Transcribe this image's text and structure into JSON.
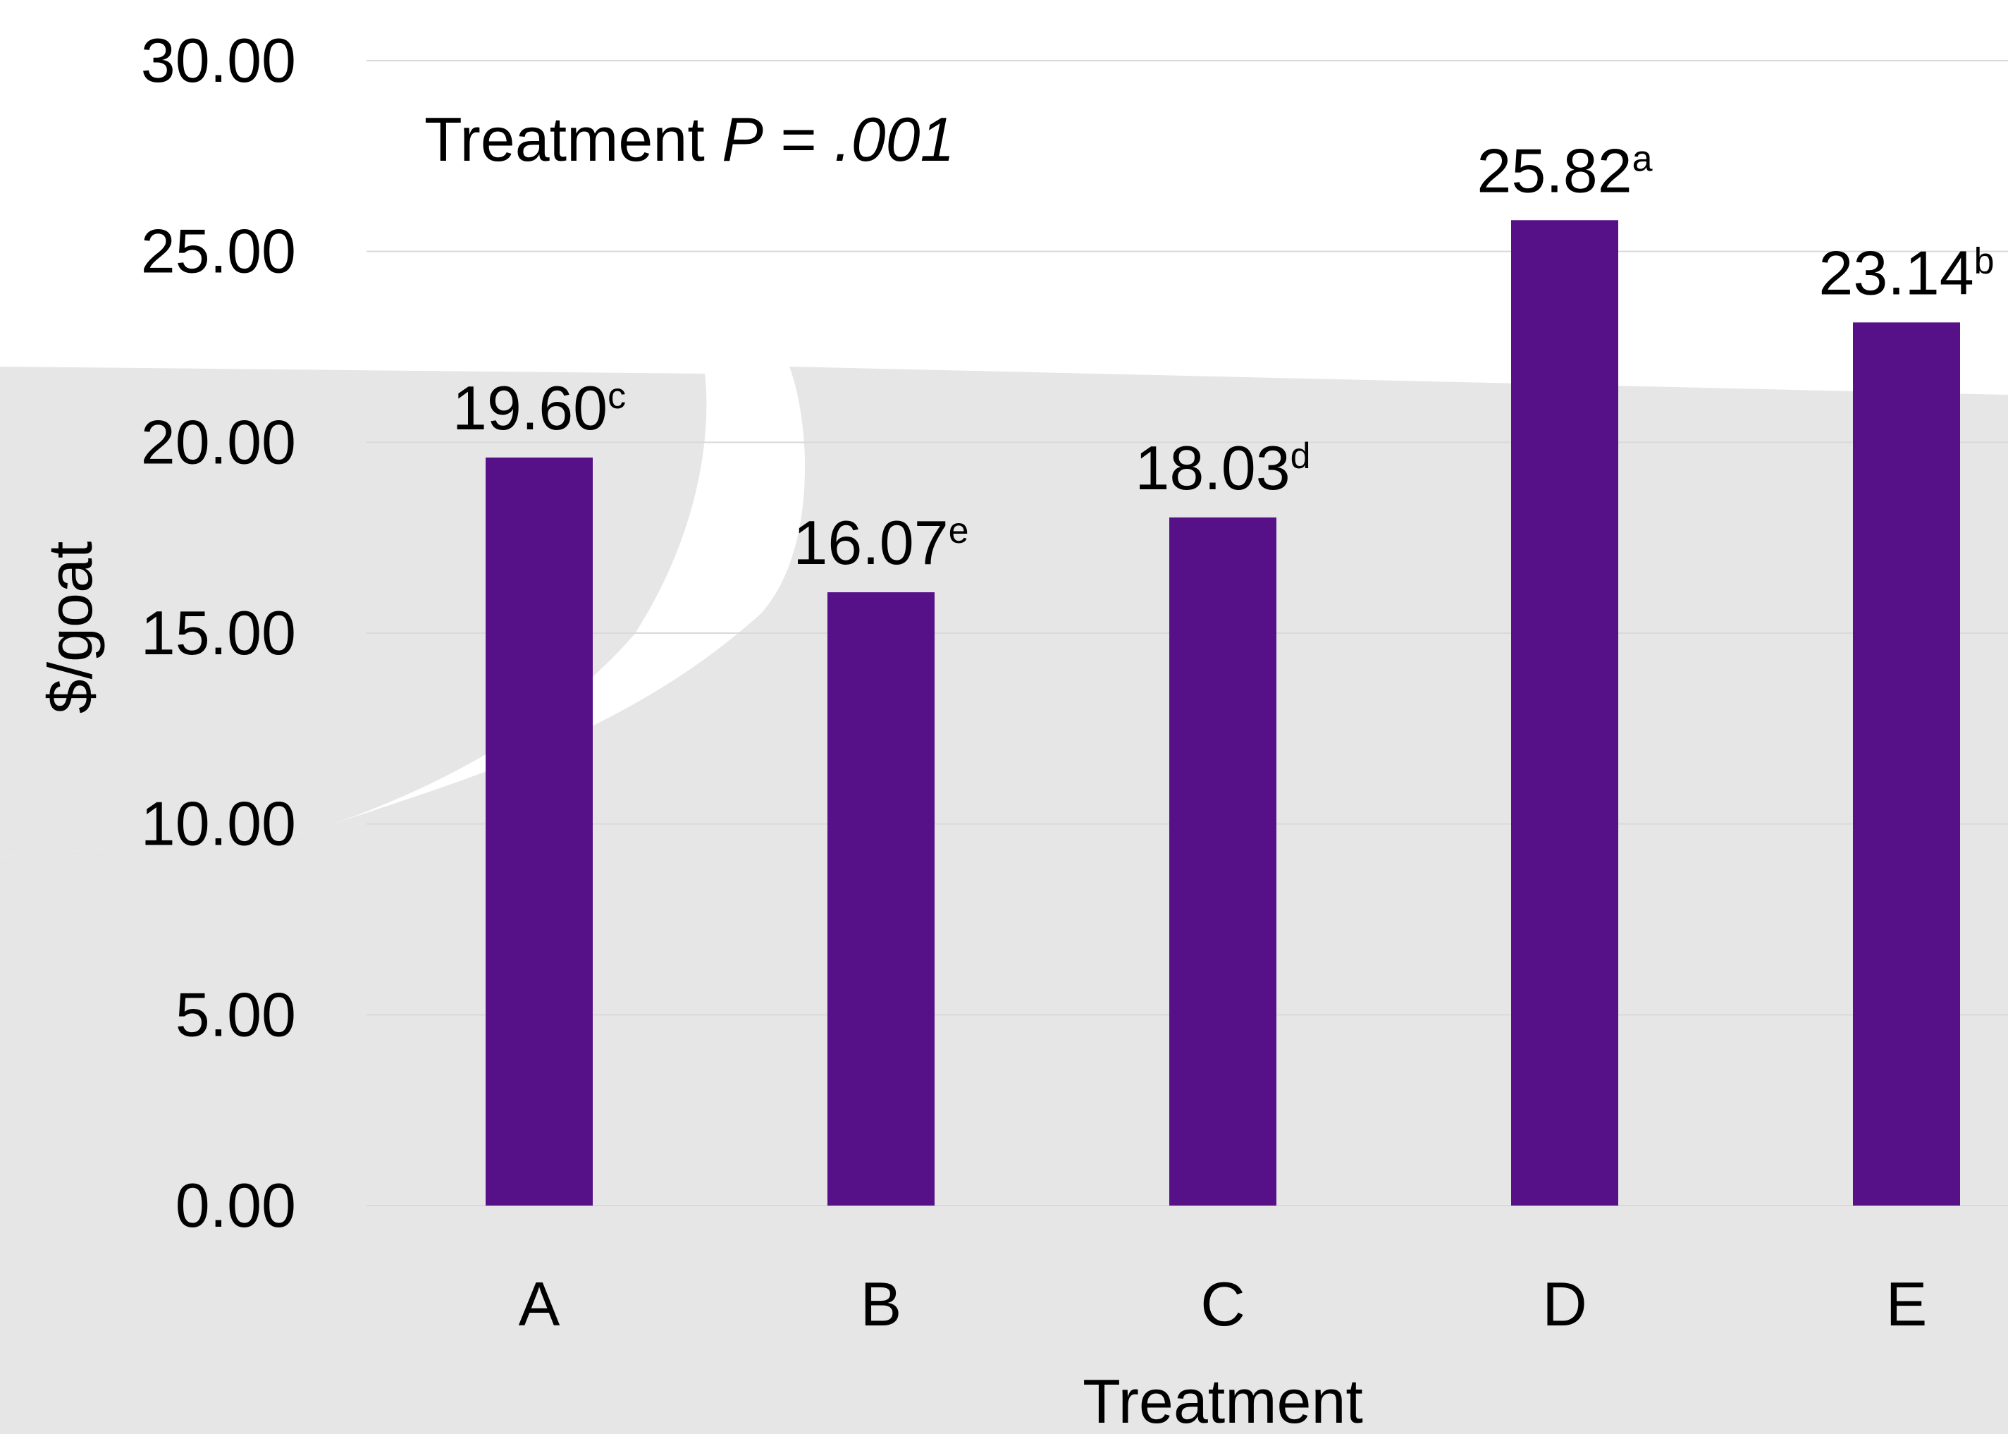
{
  "chart_data": {
    "type": "bar",
    "categories": [
      "A",
      "B",
      "C",
      "D",
      "E"
    ],
    "values": [
      19.6,
      16.07,
      18.03,
      25.82,
      23.14
    ],
    "data_labels": [
      "19.60",
      "16.07",
      "18.03",
      "25.82",
      "23.14"
    ],
    "data_label_superscripts": [
      "c",
      "e",
      "d",
      "a",
      "b"
    ],
    "xlabel": "Treatment",
    "ylabel": "$/goat",
    "ylim": [
      0,
      30
    ],
    "y_ticks": [
      0,
      5,
      10,
      15,
      20,
      25,
      30
    ],
    "y_tick_labels": [
      "0.00",
      "5.00",
      "10.00",
      "15.00",
      "20.00",
      "25.00",
      "30.00"
    ],
    "grid": true,
    "legend": "none",
    "annotation": {
      "prefix": "Treatment ",
      "p_symbol": "P",
      "equals": " = ",
      "p_value": ".001"
    },
    "bar_color": "#561088",
    "gridline_color": "#d9d9d9",
    "watermark_color": "#e6e6e6"
  }
}
